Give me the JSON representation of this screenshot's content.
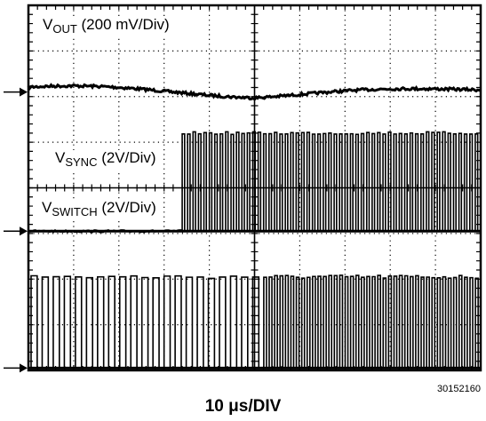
{
  "chart_data": {
    "type": "line",
    "grid": true,
    "grid_divisions": {
      "horizontal": 10,
      "vertical": 8
    },
    "colors": {
      "trace": "#000000",
      "grid": "#000000",
      "background": "#ffffff"
    },
    "series": [
      {
        "name_main": "V",
        "name_sub": "OUT",
        "name_rest": " (200 mV/Div)",
        "kind": "ripple",
        "baseline_div": 6.1,
        "ripple_div": 0.15
      },
      {
        "name_main": "V",
        "name_sub": "SYNC",
        "name_rest": " (2V/Div)",
        "kind": "sync",
        "baseline_div": 3.05,
        "amplitude_div": 2.15,
        "start_time_div": 3.4,
        "period_div": 0.12
      },
      {
        "name_main": "V",
        "name_sub": "SWITCH",
        "name_rest": " (2V/Div)",
        "kind": "switch",
        "baseline_div": 0.05,
        "amplitude_div": 2.0,
        "period_before_div": 0.245,
        "period_after_div": 0.12,
        "change_time_div": 5.0
      }
    ],
    "xlabel": "10 μs/DIV"
  },
  "figure_id": "30152160"
}
